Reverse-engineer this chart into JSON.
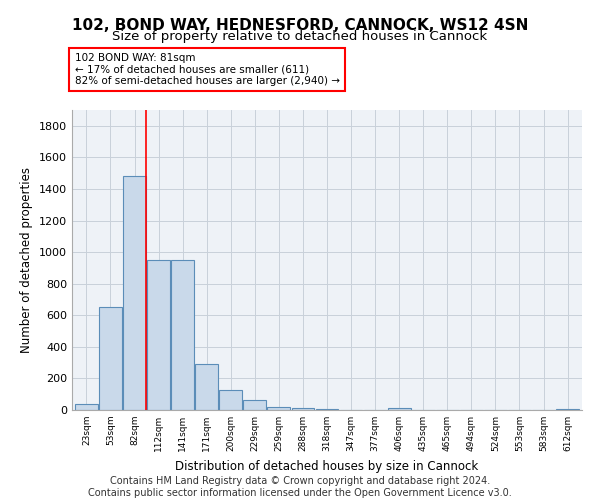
{
  "title1": "102, BOND WAY, HEDNESFORD, CANNOCK, WS12 4SN",
  "title2": "Size of property relative to detached houses in Cannock",
  "xlabel": "Distribution of detached houses by size in Cannock",
  "ylabel": "Number of detached properties",
  "categories": [
    "23sqm",
    "53sqm",
    "82sqm",
    "112sqm",
    "141sqm",
    "171sqm",
    "200sqm",
    "229sqm",
    "259sqm",
    "288sqm",
    "318sqm",
    "347sqm",
    "377sqm",
    "406sqm",
    "435sqm",
    "465sqm",
    "494sqm",
    "524sqm",
    "553sqm",
    "583sqm",
    "612sqm"
  ],
  "values": [
    38,
    650,
    1480,
    950,
    950,
    290,
    125,
    65,
    20,
    15,
    5,
    0,
    0,
    12,
    0,
    0,
    0,
    0,
    0,
    0,
    5
  ],
  "bar_color": "#c9d9ea",
  "bar_edge_color": "#5b8db8",
  "annotation_text": "102 BOND WAY: 81sqm\n← 17% of detached houses are smaller (611)\n82% of semi-detached houses are larger (2,940) →",
  "annotation_box_facecolor": "white",
  "annotation_box_edgecolor": "red",
  "ylim": [
    0,
    1900
  ],
  "yticks": [
    0,
    200,
    400,
    600,
    800,
    1000,
    1200,
    1400,
    1600,
    1800
  ],
  "footer_line1": "Contains HM Land Registry data © Crown copyright and database right 2024.",
  "footer_line2": "Contains public sector information licensed under the Open Government Licence v3.0.",
  "bg_color": "#eef2f7",
  "grid_color": "#c8d0da"
}
